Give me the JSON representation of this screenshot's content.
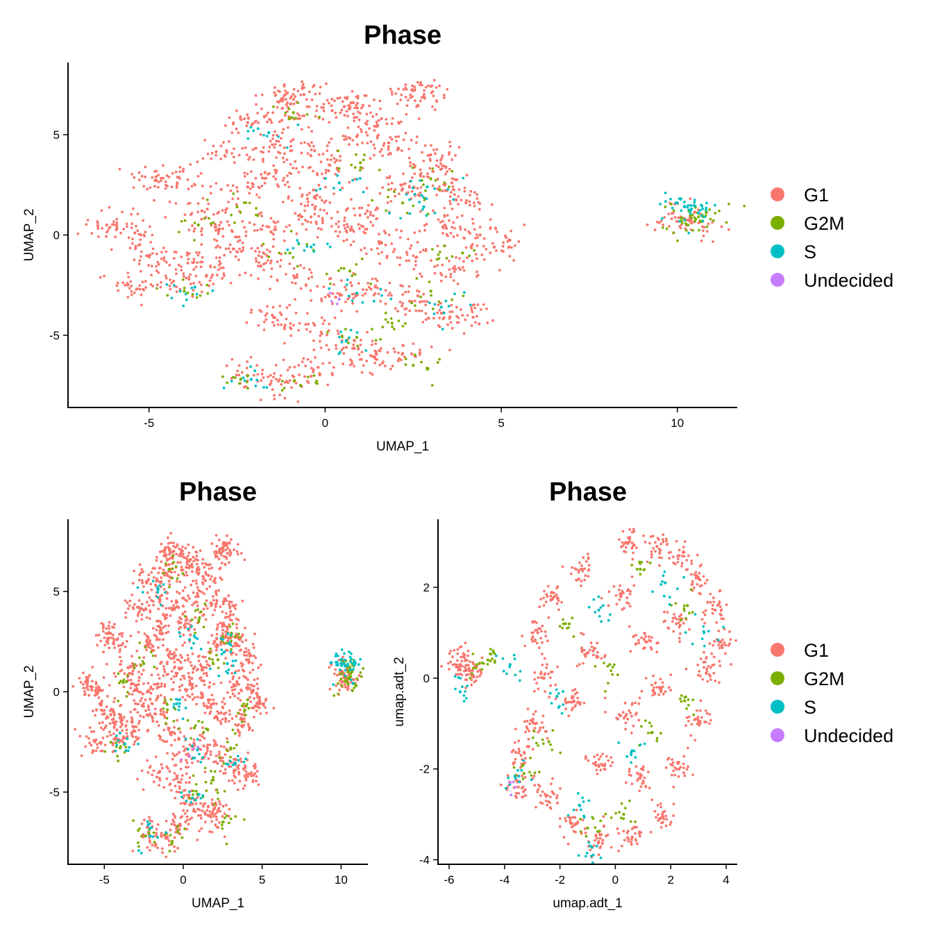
{
  "chart_data": [
    {
      "type": "scatter",
      "title": "Phase",
      "xlabel": "UMAP_1",
      "ylabel": "UMAP_2",
      "xlim": [
        -7.3,
        11.7
      ],
      "ylim": [
        -8.6,
        8.6
      ],
      "xticks": [
        -5,
        0,
        5,
        10
      ],
      "xtick_labels": [
        "-5",
        "0",
        "5",
        "10"
      ],
      "yticks": [
        -5,
        0,
        5
      ],
      "ytick_labels": [
        "-5",
        "0",
        "5"
      ],
      "legend": [
        "G1",
        "G2M",
        "S",
        "Undecided"
      ],
      "series": [
        {
          "name": "G1",
          "color": "#F8766D",
          "values": [
            [
              -1.2,
              6.8
            ],
            [
              -0.6,
              7.0
            ],
            [
              -1.5,
              4.5
            ],
            [
              0.8,
              6.6
            ],
            [
              2.5,
              7.2
            ],
            [
              2.8,
              6.9
            ],
            [
              -4.8,
              2.9
            ],
            [
              -4.2,
              2.6
            ],
            [
              -3.5,
              1.2
            ],
            [
              -3.0,
              0.3
            ],
            [
              -2.2,
              2.4
            ],
            [
              -1.4,
              3.1
            ],
            [
              -0.3,
              4.2
            ],
            [
              0.9,
              4.9
            ],
            [
              1.8,
              4.4
            ],
            [
              2.7,
              3.0
            ],
            [
              3.6,
              2.6
            ],
            [
              4.0,
              1.6
            ],
            [
              3.4,
              0.5
            ],
            [
              4.4,
              0.0
            ],
            [
              4.8,
              -0.6
            ],
            [
              3.7,
              -1.7
            ],
            [
              2.6,
              -1.1
            ],
            [
              1.6,
              -0.4
            ],
            [
              0.6,
              0.2
            ],
            [
              -0.4,
              0.9
            ],
            [
              -1.6,
              0.4
            ],
            [
              -2.6,
              -0.7
            ],
            [
              -3.9,
              -1.4
            ],
            [
              -5.0,
              -1.1
            ],
            [
              -5.6,
              -2.5
            ],
            [
              -4.3,
              -2.3
            ],
            [
              -3.2,
              -2.0
            ],
            [
              -1.8,
              -1.1
            ],
            [
              -0.8,
              -2.1
            ],
            [
              0.3,
              -3.1
            ],
            [
              1.3,
              -2.7
            ],
            [
              2.4,
              -3.3
            ],
            [
              3.3,
              -3.9
            ],
            [
              4.2,
              -4.1
            ],
            [
              -1.5,
              -4.0
            ],
            [
              -0.3,
              -4.5
            ],
            [
              0.6,
              -5.6
            ],
            [
              1.4,
              -6.1
            ],
            [
              2.2,
              -5.9
            ],
            [
              -0.2,
              -6.6
            ],
            [
              -1.1,
              -7.3
            ],
            [
              -2.2,
              -7.0
            ],
            [
              -6.2,
              0.5
            ],
            [
              -5.4,
              0.1
            ],
            [
              -0.5,
              1.8
            ],
            [
              1.2,
              1.2
            ],
            [
              2.2,
              2.3
            ],
            [
              0.1,
              3.2
            ],
            [
              -2.8,
              4.2
            ],
            [
              -2.2,
              5.6
            ],
            [
              -1.0,
              5.8
            ],
            [
              0.2,
              6.2
            ],
            [
              1.6,
              5.8
            ],
            [
              3.0,
              4.0
            ],
            [
              10.1,
              0.9
            ],
            [
              10.4,
              0.6
            ]
          ]
        },
        {
          "name": "G2M",
          "color": "#7CAE00",
          "values": [
            [
              -0.9,
              6.1
            ],
            [
              1.0,
              3.6
            ],
            [
              2.2,
              1.6
            ],
            [
              3.0,
              2.8
            ],
            [
              -2.5,
              1.4
            ],
            [
              -1.0,
              -0.9
            ],
            [
              0.7,
              -1.8
            ],
            [
              3.0,
              -2.8
            ],
            [
              -4.0,
              -2.8
            ],
            [
              1.9,
              -4.4
            ],
            [
              0.9,
              -5.1
            ],
            [
              -2.4,
              -7.2
            ],
            [
              -0.7,
              -7.5
            ],
            [
              2.5,
              -6.5
            ],
            [
              3.9,
              -0.9
            ],
            [
              -3.6,
              0.5
            ],
            [
              10.5,
              0.7
            ],
            [
              10.6,
              0.9
            ],
            [
              10.3,
              0.5
            ],
            [
              10.7,
              1.0
            ]
          ]
        },
        {
          "name": "S",
          "color": "#00BFC4",
          "values": [
            [
              -1.6,
              5.1
            ],
            [
              0.4,
              2.6
            ],
            [
              2.8,
              1.4
            ],
            [
              -0.4,
              -0.6
            ],
            [
              0.9,
              -2.9
            ],
            [
              3.3,
              -3.6
            ],
            [
              -3.7,
              -2.6
            ],
            [
              0.6,
              -5.3
            ],
            [
              -2.1,
              -7.2
            ],
            [
              2.9,
              2.4
            ],
            [
              10.2,
              1.4
            ],
            [
              10.4,
              1.3
            ],
            [
              10.0,
              1.6
            ],
            [
              10.6,
              1.1
            ]
          ]
        },
        {
          "name": "Undecided",
          "color": "#C77CFF",
          "values": [
            [
              0.4,
              -3.2
            ]
          ]
        }
      ]
    },
    {
      "type": "scatter",
      "title": "Phase",
      "xlabel": "UMAP_1",
      "ylabel": "UMAP_2",
      "xlim": [
        -7.3,
        11.7
      ],
      "ylim": [
        -8.6,
        8.6
      ],
      "xticks": [
        -5,
        0,
        5,
        10
      ],
      "xtick_labels": [
        "-5",
        "0",
        "5",
        "10"
      ],
      "yticks": [
        -5,
        0,
        5
      ],
      "ytick_labels": [
        "-5",
        "0",
        "5"
      ],
      "legend": [],
      "series": [
        {
          "name": "G1",
          "color": "#F8766D",
          "values": [
            [
              -1.2,
              6.8
            ],
            [
              -0.6,
              7.0
            ],
            [
              -1.5,
              4.5
            ],
            [
              0.8,
              6.6
            ],
            [
              2.5,
              7.2
            ],
            [
              2.8,
              6.9
            ],
            [
              -4.8,
              2.9
            ],
            [
              -4.2,
              2.6
            ],
            [
              -3.5,
              1.2
            ],
            [
              -3.0,
              0.3
            ],
            [
              -2.2,
              2.4
            ],
            [
              -1.4,
              3.1
            ],
            [
              -0.3,
              4.2
            ],
            [
              0.9,
              4.9
            ],
            [
              1.8,
              4.4
            ],
            [
              2.7,
              3.0
            ],
            [
              3.6,
              2.6
            ],
            [
              4.0,
              1.6
            ],
            [
              3.4,
              0.5
            ],
            [
              4.4,
              0.0
            ],
            [
              4.8,
              -0.6
            ],
            [
              3.7,
              -1.7
            ],
            [
              2.6,
              -1.1
            ],
            [
              1.6,
              -0.4
            ],
            [
              0.6,
              0.2
            ],
            [
              -0.4,
              0.9
            ],
            [
              -1.6,
              0.4
            ],
            [
              -2.6,
              -0.7
            ],
            [
              -3.9,
              -1.4
            ],
            [
              -5.0,
              -1.1
            ],
            [
              -5.6,
              -2.5
            ],
            [
              -4.3,
              -2.3
            ],
            [
              -3.2,
              -2.0
            ],
            [
              -1.8,
              -1.1
            ],
            [
              -0.8,
              -2.1
            ],
            [
              0.3,
              -3.1
            ],
            [
              1.3,
              -2.7
            ],
            [
              2.4,
              -3.3
            ],
            [
              3.3,
              -3.9
            ],
            [
              4.2,
              -4.1
            ],
            [
              -1.5,
              -4.0
            ],
            [
              -0.3,
              -4.5
            ],
            [
              0.6,
              -5.6
            ],
            [
              1.4,
              -6.1
            ],
            [
              2.2,
              -5.9
            ],
            [
              -0.2,
              -6.6
            ],
            [
              -1.1,
              -7.3
            ],
            [
              -2.2,
              -7.0
            ],
            [
              -6.2,
              0.5
            ],
            [
              -5.4,
              0.1
            ],
            [
              -0.5,
              1.8
            ],
            [
              1.2,
              1.2
            ],
            [
              2.2,
              2.3
            ],
            [
              0.1,
              3.2
            ],
            [
              -2.8,
              4.2
            ],
            [
              -2.2,
              5.6
            ],
            [
              -1.0,
              5.8
            ],
            [
              0.2,
              6.2
            ],
            [
              1.6,
              5.8
            ],
            [
              3.0,
              4.0
            ],
            [
              10.1,
              0.9
            ],
            [
              10.4,
              0.6
            ]
          ]
        },
        {
          "name": "G2M",
          "color": "#7CAE00",
          "values": [
            [
              -0.9,
              6.1
            ],
            [
              1.0,
              3.6
            ],
            [
              2.2,
              1.6
            ],
            [
              3.0,
              2.8
            ],
            [
              -2.5,
              1.4
            ],
            [
              -1.0,
              -0.9
            ],
            [
              0.7,
              -1.8
            ],
            [
              3.0,
              -2.8
            ],
            [
              -4.0,
              -2.8
            ],
            [
              1.9,
              -4.4
            ],
            [
              0.9,
              -5.1
            ],
            [
              -2.4,
              -7.2
            ],
            [
              -0.7,
              -7.5
            ],
            [
              2.5,
              -6.5
            ],
            [
              3.9,
              -0.9
            ],
            [
              -3.6,
              0.5
            ],
            [
              10.5,
              0.7
            ],
            [
              10.6,
              0.9
            ],
            [
              10.3,
              0.5
            ],
            [
              10.7,
              1.0
            ]
          ]
        },
        {
          "name": "S",
          "color": "#00BFC4",
          "values": [
            [
              -1.6,
              5.1
            ],
            [
              0.4,
              2.6
            ],
            [
              2.8,
              1.4
            ],
            [
              -0.4,
              -0.6
            ],
            [
              0.9,
              -2.9
            ],
            [
              3.3,
              -3.6
            ],
            [
              -3.7,
              -2.6
            ],
            [
              0.6,
              -5.3
            ],
            [
              -2.1,
              -7.2
            ],
            [
              2.9,
              2.4
            ],
            [
              10.2,
              1.4
            ],
            [
              10.4,
              1.3
            ],
            [
              10.0,
              1.6
            ],
            [
              10.6,
              1.1
            ]
          ]
        },
        {
          "name": "Undecided",
          "color": "#C77CFF",
          "values": [
            [
              0.4,
              -3.2
            ]
          ]
        }
      ]
    },
    {
      "type": "scatter",
      "title": "Phase",
      "xlabel": "umap.adt_1",
      "ylabel": "umap.adt_2",
      "xlim": [
        -6.4,
        4.4
      ],
      "ylim": [
        -4.1,
        3.5
      ],
      "xticks": [
        -6,
        -4,
        -2,
        0,
        2,
        4
      ],
      "xtick_labels": [
        "-6",
        "-4",
        "-2",
        "0",
        "2",
        "4"
      ],
      "yticks": [
        -4,
        -2,
        0,
        2
      ],
      "ytick_labels": [
        "-4",
        "-2",
        "0",
        "2"
      ],
      "legend": [
        "G1",
        "G2M",
        "S",
        "Undecided"
      ],
      "series": [
        {
          "name": "G1",
          "color": "#F8766D",
          "values": [
            [
              0.5,
              3.0
            ],
            [
              1.5,
              2.9
            ],
            [
              2.3,
              2.7
            ],
            [
              3.0,
              2.2
            ],
            [
              3.6,
              1.5
            ],
            [
              3.8,
              0.8
            ],
            [
              -1.2,
              2.4
            ],
            [
              -2.2,
              1.8
            ],
            [
              -2.8,
              1.0
            ],
            [
              -2.6,
              0.0
            ],
            [
              -2.9,
              -1.0
            ],
            [
              -3.4,
              -1.7
            ],
            [
              -3.5,
              -2.4
            ],
            [
              -2.5,
              -2.6
            ],
            [
              -1.6,
              -3.2
            ],
            [
              -0.6,
              -3.6
            ],
            [
              0.6,
              -3.5
            ],
            [
              1.7,
              -3.0
            ],
            [
              2.3,
              -2.0
            ],
            [
              2.9,
              -0.9
            ],
            [
              3.3,
              0.2
            ],
            [
              0.2,
              1.8
            ],
            [
              1.1,
              0.8
            ],
            [
              -0.8,
              0.6
            ],
            [
              -1.5,
              -0.5
            ],
            [
              0.4,
              -0.8
            ],
            [
              1.6,
              -0.2
            ],
            [
              -0.5,
              -1.9
            ],
            [
              0.9,
              -2.2
            ],
            [
              2.2,
              1.2
            ],
            [
              -5.6,
              0.3
            ],
            [
              -5.2,
              0.1
            ],
            [
              -5.4,
              0.4
            ]
          ]
        },
        {
          "name": "G2M",
          "color": "#7CAE00",
          "values": [
            [
              0.9,
              2.4
            ],
            [
              2.6,
              1.6
            ],
            [
              -1.8,
              1.2
            ],
            [
              -2.4,
              -1.4
            ],
            [
              -3.3,
              -2.1
            ],
            [
              -1.0,
              -3.3
            ],
            [
              0.3,
              -3.0
            ],
            [
              1.3,
              -1.2
            ],
            [
              2.5,
              -0.5
            ],
            [
              -0.2,
              0.3
            ],
            [
              -5.0,
              0.3
            ],
            [
              -4.6,
              0.4
            ]
          ]
        },
        {
          "name": "S",
          "color": "#00BFC4",
          "values": [
            [
              1.8,
              2.1
            ],
            [
              -0.6,
              1.5
            ],
            [
              3.2,
              1.0
            ],
            [
              -2.1,
              -0.4
            ],
            [
              0.6,
              -1.6
            ],
            [
              -1.3,
              -2.8
            ],
            [
              -3.6,
              -2.2
            ],
            [
              -3.8,
              0.3
            ],
            [
              -5.6,
              -0.3
            ],
            [
              -0.9,
              -3.7
            ]
          ]
        },
        {
          "name": "Undecided",
          "color": "#C77CFF",
          "values": [
            [
              -3.8,
              -2.3
            ]
          ]
        }
      ]
    }
  ]
}
